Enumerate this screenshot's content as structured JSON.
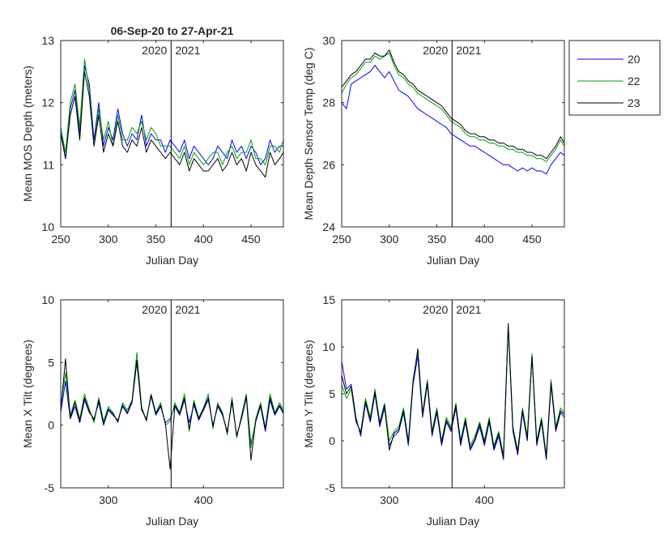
{
  "figure": {
    "title": "06-Sep-20 to 27-Apr-21",
    "legend": {
      "placement": "outside-top-right",
      "entries": [
        "20",
        "22",
        "23"
      ]
    },
    "series_colors": {
      "20": "#0000ff",
      "22": "#00a000",
      "23": "#000000"
    },
    "year_divider_day": 366,
    "year_labels": [
      "2020",
      "2021"
    ]
  },
  "chart_data": [
    {
      "type": "line",
      "title": "06-Sep-20 to 27-Apr-21",
      "xlabel": "Julian Day",
      "ylabel": "Mean MOS Depth  (meters)",
      "xlim": [
        250,
        484
      ],
      "ylim": [
        10,
        13
      ],
      "xticks": [
        250,
        300,
        350,
        400,
        450
      ],
      "yticks": [
        10,
        11,
        12,
        13
      ],
      "grid": false,
      "x": [
        250,
        255,
        260,
        265,
        270,
        275,
        280,
        285,
        290,
        295,
        300,
        305,
        310,
        315,
        320,
        325,
        330,
        335,
        340,
        345,
        350,
        355,
        360,
        365,
        370,
        375,
        380,
        385,
        390,
        395,
        400,
        405,
        410,
        415,
        420,
        425,
        430,
        435,
        440,
        445,
        450,
        455,
        460,
        465,
        470,
        475,
        480,
        484
      ],
      "series": [
        {
          "name": "20",
          "values": [
            11.6,
            11.1,
            11.9,
            12.2,
            11.5,
            12.6,
            12.3,
            11.4,
            12.0,
            11.3,
            11.6,
            11.4,
            11.9,
            11.5,
            11.3,
            11.5,
            11.4,
            11.8,
            11.3,
            11.5,
            11.4,
            11.4,
            11.2,
            11.4,
            11.3,
            11.2,
            11.4,
            11.1,
            11.3,
            11.2,
            11.1,
            11.0,
            11.1,
            11.3,
            11.2,
            11.1,
            11.4,
            11.2,
            11.3,
            11.1,
            11.3,
            11.2,
            11.0,
            11.1,
            11.4,
            11.2,
            11.3,
            11.3
          ]
        },
        {
          "name": "22",
          "values": [
            11.6,
            11.2,
            12.0,
            12.3,
            11.6,
            12.7,
            12.2,
            11.3,
            11.9,
            11.4,
            11.7,
            11.3,
            11.8,
            11.4,
            11.4,
            11.6,
            11.5,
            11.7,
            11.4,
            11.6,
            11.5,
            11.3,
            11.3,
            11.3,
            11.2,
            11.1,
            11.3,
            11.0,
            11.2,
            11.1,
            11.0,
            11.1,
            11.2,
            11.2,
            11.0,
            11.2,
            11.3,
            11.1,
            11.2,
            11.2,
            11.4,
            11.1,
            11.1,
            11.0,
            11.3,
            11.3,
            11.2,
            11.4
          ]
        },
        {
          "name": "23",
          "values": [
            11.5,
            11.1,
            11.8,
            12.1,
            11.4,
            12.5,
            12.1,
            11.3,
            11.8,
            11.2,
            11.5,
            11.3,
            11.7,
            11.3,
            11.2,
            11.4,
            11.3,
            11.6,
            11.2,
            11.4,
            11.3,
            11.2,
            11.1,
            11.2,
            11.1,
            11.0,
            11.2,
            10.9,
            11.1,
            11.0,
            10.9,
            10.9,
            11.0,
            11.1,
            10.9,
            11.0,
            11.2,
            11.0,
            11.1,
            10.9,
            11.2,
            11.0,
            10.9,
            10.8,
            11.2,
            11.0,
            11.1,
            11.2
          ]
        }
      ]
    },
    {
      "type": "line",
      "title": "",
      "xlabel": "Julian Day",
      "ylabel": "Mean Depth Sensor Temp (deg C)",
      "xlim": [
        250,
        484
      ],
      "ylim": [
        24,
        30
      ],
      "xticks": [
        250,
        300,
        350,
        400,
        450
      ],
      "yticks": [
        24,
        26,
        28,
        30
      ],
      "grid": false,
      "x": [
        250,
        255,
        260,
        265,
        270,
        275,
        280,
        285,
        290,
        295,
        300,
        305,
        310,
        315,
        320,
        325,
        330,
        335,
        340,
        345,
        350,
        355,
        360,
        365,
        370,
        375,
        380,
        385,
        390,
        395,
        400,
        405,
        410,
        415,
        420,
        425,
        430,
        435,
        440,
        445,
        450,
        455,
        460,
        465,
        470,
        475,
        480,
        484
      ],
      "series": [
        {
          "name": "20",
          "values": [
            28.0,
            27.8,
            28.6,
            28.7,
            28.8,
            28.9,
            29.0,
            29.2,
            29.0,
            28.8,
            29.0,
            28.7,
            28.4,
            28.3,
            28.2,
            28.0,
            27.8,
            27.7,
            27.6,
            27.5,
            27.4,
            27.3,
            27.2,
            27.0,
            26.9,
            26.8,
            26.7,
            26.6,
            26.6,
            26.5,
            26.4,
            26.3,
            26.2,
            26.1,
            26.0,
            26.0,
            25.9,
            25.8,
            25.9,
            25.8,
            25.9,
            25.8,
            25.8,
            25.7,
            26.0,
            26.2,
            26.4,
            26.3
          ]
        },
        {
          "name": "22",
          "values": [
            28.3,
            28.6,
            28.8,
            28.9,
            29.1,
            29.3,
            29.3,
            29.5,
            29.4,
            29.5,
            29.6,
            29.2,
            28.9,
            28.8,
            28.6,
            28.5,
            28.3,
            28.2,
            28.1,
            28.0,
            27.9,
            27.8,
            27.6,
            27.4,
            27.3,
            27.2,
            27.0,
            26.9,
            26.9,
            26.8,
            26.8,
            26.7,
            26.7,
            26.6,
            26.6,
            26.5,
            26.5,
            26.4,
            26.4,
            26.3,
            26.3,
            26.2,
            26.2,
            26.1,
            26.3,
            26.5,
            26.8,
            26.6
          ]
        },
        {
          "name": "23",
          "values": [
            28.5,
            28.7,
            28.9,
            29.0,
            29.2,
            29.4,
            29.4,
            29.6,
            29.5,
            29.5,
            29.7,
            29.3,
            29.0,
            28.9,
            28.7,
            28.6,
            28.4,
            28.3,
            28.2,
            28.1,
            28.0,
            27.9,
            27.7,
            27.5,
            27.4,
            27.3,
            27.1,
            27.0,
            27.0,
            26.9,
            26.9,
            26.8,
            26.8,
            26.7,
            26.7,
            26.6,
            26.6,
            26.5,
            26.5,
            26.4,
            26.4,
            26.3,
            26.3,
            26.2,
            26.4,
            26.6,
            26.9,
            26.7
          ]
        }
      ]
    },
    {
      "type": "line",
      "title": "",
      "xlabel": "Julian Day",
      "ylabel": "Mean X Tilt  (degrees)",
      "xlim": [
        250,
        484
      ],
      "ylim": [
        -5,
        10
      ],
      "xticks": [
        300,
        400
      ],
      "yticks": [
        -5,
        0,
        5,
        10
      ],
      "grid": false,
      "x": [
        250,
        255,
        260,
        265,
        270,
        275,
        280,
        285,
        290,
        295,
        300,
        305,
        310,
        315,
        320,
        325,
        330,
        335,
        340,
        345,
        350,
        355,
        360,
        365,
        370,
        375,
        380,
        385,
        390,
        395,
        400,
        405,
        410,
        415,
        420,
        425,
        430,
        435,
        440,
        445,
        450,
        455,
        460,
        465,
        470,
        475,
        480,
        484
      ],
      "series": [
        {
          "name": "20",
          "values": [
            1.0,
            3.5,
            0.5,
            1.5,
            0.2,
            2.0,
            1.0,
            0.5,
            1.8,
            0.0,
            1.2,
            0.8,
            0.4,
            1.5,
            0.9,
            1.8,
            5.0,
            1.2,
            0.5,
            2.3,
            0.8,
            1.5,
            0.2,
            0.5,
            1.5,
            0.8,
            2.0,
            0.2,
            1.6,
            0.4,
            1.2,
            2.0,
            0.0,
            1.5,
            0.8,
            -0.5,
            1.8,
            -0.8,
            0.5,
            2.2,
            -1.5,
            0.3,
            1.5,
            -0.5,
            2.0,
            0.8,
            1.5,
            0.9
          ]
        },
        {
          "name": "22",
          "values": [
            1.5,
            4.2,
            0.8,
            2.0,
            0.5,
            2.5,
            1.3,
            0.2,
            2.2,
            0.3,
            1.5,
            1.0,
            0.2,
            1.8,
            1.2,
            2.0,
            5.8,
            1.5,
            0.3,
            2.5,
            1.0,
            1.8,
            0.0,
            0.3,
            1.8,
            1.0,
            2.5,
            -0.5,
            2.0,
            0.6,
            1.4,
            2.5,
            -0.3,
            1.8,
            1.0,
            -0.8,
            2.2,
            -1.0,
            0.8,
            2.5,
            -1.8,
            0.5,
            1.8,
            -0.2,
            2.5,
            1.0,
            1.8,
            1.2
          ]
        },
        {
          "name": "23",
          "values": [
            1.2,
            5.3,
            0.6,
            1.8,
            0.3,
            2.2,
            1.1,
            0.4,
            2.0,
            0.1,
            1.3,
            0.9,
            0.3,
            1.6,
            1.0,
            1.9,
            5.2,
            1.3,
            0.4,
            2.4,
            0.9,
            1.6,
            0.1,
            -3.5,
            1.6,
            0.9,
            2.2,
            -0.3,
            1.8,
            0.5,
            1.3,
            2.2,
            -0.1,
            1.6,
            0.9,
            -0.6,
            2.0,
            -0.9,
            0.6,
            2.3,
            -2.8,
            0.4,
            1.6,
            -0.3,
            2.2,
            0.9,
            1.6,
            1.0
          ]
        }
      ]
    },
    {
      "type": "line",
      "title": "",
      "xlabel": "Julian Day",
      "ylabel": "Mean Y Tilt  (degrees)",
      "xlim": [
        250,
        484
      ],
      "ylim": [
        -5,
        15
      ],
      "xticks": [
        300,
        400
      ],
      "yticks": [
        -5,
        0,
        5,
        10,
        15
      ],
      "grid": false,
      "x": [
        250,
        255,
        260,
        265,
        270,
        275,
        280,
        285,
        290,
        295,
        300,
        305,
        310,
        315,
        320,
        325,
        330,
        335,
        340,
        345,
        350,
        355,
        360,
        365,
        370,
        375,
        380,
        385,
        390,
        395,
        400,
        405,
        410,
        415,
        420,
        425,
        430,
        435,
        440,
        445,
        450,
        455,
        460,
        465,
        470,
        475,
        480,
        484
      ],
      "series": [
        {
          "name": "20",
          "values": [
            8.5,
            5.5,
            6.0,
            2.5,
            0.5,
            4.0,
            2.0,
            5.0,
            1.5,
            3.5,
            -0.5,
            0.5,
            1.0,
            3.0,
            -0.5,
            6.0,
            9.0,
            2.5,
            6.0,
            0.5,
            3.0,
            -0.5,
            2.0,
            1.0,
            3.5,
            -0.5,
            2.0,
            -1.0,
            0.0,
            1.5,
            -0.5,
            2.0,
            -1.0,
            0.5,
            -2.0,
            12.0,
            1.0,
            -1.5,
            3.0,
            0.0,
            9.0,
            -0.5,
            2.0,
            -2.0,
            6.0,
            1.0,
            3.0,
            2.5
          ]
        },
        {
          "name": "22",
          "values": [
            6.0,
            4.5,
            5.5,
            2.0,
            1.0,
            4.5,
            2.5,
            5.5,
            2.0,
            4.0,
            0.0,
            1.0,
            1.5,
            3.5,
            0.0,
            6.5,
            9.5,
            3.0,
            6.5,
            1.0,
            3.5,
            0.0,
            2.5,
            1.5,
            4.0,
            0.0,
            2.5,
            -0.5,
            0.5,
            2.0,
            0.0,
            2.5,
            -0.5,
            1.0,
            -1.5,
            12.2,
            1.5,
            -1.0,
            3.5,
            0.5,
            9.3,
            0.0,
            2.5,
            -1.5,
            6.5,
            1.5,
            3.5,
            3.0
          ]
        },
        {
          "name": "23",
          "values": [
            7.0,
            5.0,
            5.8,
            2.2,
            0.8,
            4.2,
            2.2,
            5.2,
            1.8,
            3.8,
            -1.0,
            0.8,
            1.2,
            3.2,
            -0.2,
            6.2,
            9.8,
            2.8,
            6.2,
            0.8,
            3.2,
            -0.2,
            2.2,
            1.2,
            3.8,
            -0.2,
            2.2,
            -0.8,
            0.2,
            1.8,
            -0.2,
            2.2,
            -0.8,
            0.8,
            -1.8,
            12.5,
            1.2,
            -1.2,
            3.2,
            0.2,
            9.0,
            -0.2,
            2.2,
            -1.8,
            6.2,
            1.2,
            3.2,
            2.8
          ]
        }
      ]
    }
  ]
}
